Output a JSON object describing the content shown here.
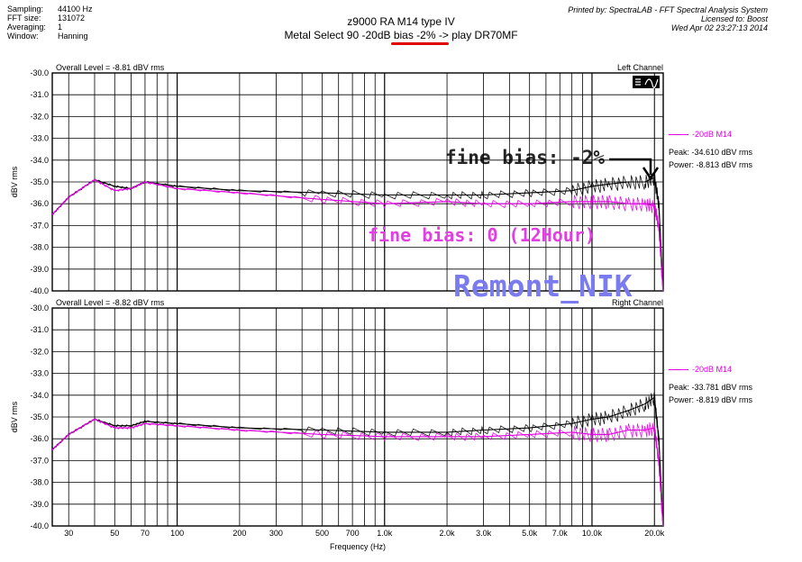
{
  "header": {
    "fields": [
      {
        "key": "Sampling:",
        "value": "44100 Hz"
      },
      {
        "key": "FFT size:",
        "value": "131072"
      },
      {
        "key": "Averaging:",
        "value": "1"
      },
      {
        "key": "Window:",
        "value": "Hanning"
      }
    ],
    "title": "z9000 RA M14 type IV",
    "subtitle": "Metal Select 90 -20dB bias -2% -> play DR70MF",
    "printed_by": "Printed by: SpectraLAB - FFT Spectral Analysis System",
    "licensed_to": "Licensed to: Boost",
    "timestamp": "Wed Apr 02 23:27:13 2014"
  },
  "colors": {
    "series_black": "#000000",
    "series_magenta": "#e000e0",
    "annotation_magenta": "#e040e0",
    "watermark": "#7b7bf0",
    "underline": "#e00000"
  },
  "annotations": {
    "black": "fine bias: -2%",
    "magenta": "fine bias: 0 (12Hour)",
    "watermark": "Remont_NIK"
  },
  "chart_data": [
    {
      "type": "line",
      "channel_label": "Left Channel",
      "overall_level": "Overall Level = -8.81 dBV rms",
      "legend_label": "-20dB M14",
      "peak": "Peak: -34.610 dBV rms",
      "power": "Power: -8.813 dBV rms",
      "ylabel": "dBV rms",
      "xlabel": "",
      "ylim": [
        -40,
        -30
      ],
      "xlim": [
        25,
        22050
      ],
      "x_scale": "log",
      "y_ticks": [
        "-30.0",
        "-31.0",
        "-32.0",
        "-33.0",
        "-34.0",
        "-35.0",
        "-36.0",
        "-37.0",
        "-38.0",
        "-39.0",
        "-40.0"
      ],
      "series": [
        {
          "name": "",
          "color": "#000000",
          "x": [
            25,
            30,
            40,
            50,
            60,
            70,
            100,
            200,
            500,
            1000,
            2000,
            3000,
            5000,
            8000,
            10000,
            12000,
            15000,
            18000,
            20000,
            21000,
            22000
          ],
          "values": [
            -36.5,
            -35.7,
            -34.9,
            -35.2,
            -35.3,
            -35.0,
            -35.2,
            -35.4,
            -35.5,
            -35.6,
            -35.6,
            -35.6,
            -35.5,
            -35.4,
            -35.2,
            -35.1,
            -35.0,
            -35.0,
            -34.8,
            -36.0,
            -40.0
          ]
        },
        {
          "name": "",
          "color": "#e000e0",
          "x": [
            25,
            30,
            40,
            50,
            60,
            70,
            100,
            200,
            500,
            1000,
            2000,
            3000,
            5000,
            8000,
            10000,
            12000,
            15000,
            18000,
            20000,
            21000,
            22000
          ],
          "values": [
            -36.5,
            -35.7,
            -34.9,
            -35.4,
            -35.3,
            -35.0,
            -35.3,
            -35.5,
            -35.8,
            -36.0,
            -35.9,
            -36.0,
            -36.0,
            -35.9,
            -35.9,
            -35.9,
            -36.0,
            -36.0,
            -36.1,
            -37.0,
            -40.0
          ]
        }
      ]
    },
    {
      "type": "line",
      "channel_label": "Right Channel",
      "overall_level": "Overall Level = -8.82 dBV rms",
      "legend_label": "-20dB M14",
      "peak": "Peak: -33.781 dBV rms",
      "power": "Power: -8.819 dBV rms",
      "ylabel": "dBV rms",
      "xlabel": "Frequency (Hz)",
      "ylim": [
        -40,
        -30
      ],
      "xlim": [
        25,
        22050
      ],
      "x_scale": "log",
      "y_ticks": [
        "-30.0",
        "-31.0",
        "-32.0",
        "-33.0",
        "-34.0",
        "-35.0",
        "-36.0",
        "-37.0",
        "-38.0",
        "-39.0",
        "-40.0"
      ],
      "x_ticks": [
        {
          "v": 30,
          "label": "30"
        },
        {
          "v": 50,
          "label": "50"
        },
        {
          "v": 70,
          "label": "70"
        },
        {
          "v": 100,
          "label": "100"
        },
        {
          "v": 200,
          "label": "200"
        },
        {
          "v": 300,
          "label": "300"
        },
        {
          "v": 500,
          "label": "500"
        },
        {
          "v": 700,
          "label": "700"
        },
        {
          "v": 1000,
          "label": "1.0k"
        },
        {
          "v": 2000,
          "label": "2.0k"
        },
        {
          "v": 3000,
          "label": "3.0k"
        },
        {
          "v": 5000,
          "label": "5.0k"
        },
        {
          "v": 7000,
          "label": "7.0k"
        },
        {
          "v": 10000,
          "label": "10.0k"
        },
        {
          "v": 20000,
          "label": "20.0k"
        }
      ],
      "series": [
        {
          "name": "",
          "color": "#000000",
          "x": [
            25,
            30,
            40,
            50,
            60,
            70,
            100,
            200,
            500,
            1000,
            2000,
            3000,
            5000,
            8000,
            10000,
            12000,
            15000,
            18000,
            20000,
            21000,
            22000
          ],
          "values": [
            -36.5,
            -35.8,
            -35.1,
            -35.4,
            -35.4,
            -35.2,
            -35.3,
            -35.5,
            -35.6,
            -35.7,
            -35.7,
            -35.6,
            -35.5,
            -35.3,
            -35.1,
            -35.0,
            -34.7,
            -34.4,
            -34.1,
            -36.0,
            -40.0
          ]
        },
        {
          "name": "",
          "color": "#e000e0",
          "x": [
            25,
            30,
            40,
            50,
            60,
            70,
            100,
            200,
            500,
            1000,
            2000,
            3000,
            5000,
            8000,
            10000,
            12000,
            15000,
            18000,
            20000,
            21000,
            22000
          ],
          "values": [
            -36.5,
            -35.8,
            -35.1,
            -35.5,
            -35.5,
            -35.3,
            -35.4,
            -35.6,
            -35.8,
            -35.9,
            -35.9,
            -35.9,
            -35.8,
            -35.7,
            -35.8,
            -35.8,
            -35.6,
            -35.6,
            -35.5,
            -37.0,
            -40.0
          ]
        }
      ]
    }
  ]
}
